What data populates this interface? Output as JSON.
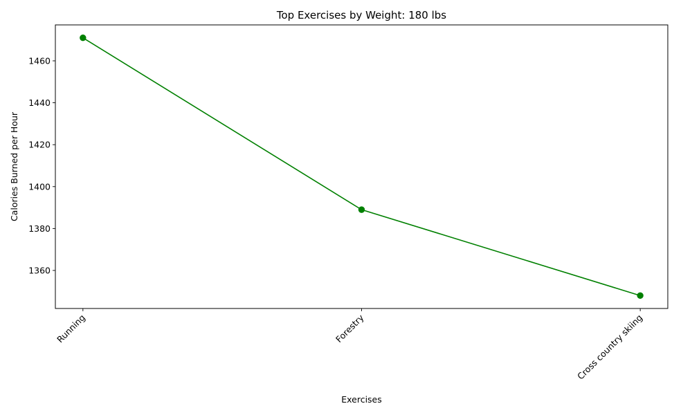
{
  "chart_data": {
    "type": "line",
    "title": "Top Exercises by Weight: 180 lbs",
    "xlabel": "Exercises",
    "ylabel": "Calories Burned per Hour",
    "categories": [
      "Running",
      "Forestry",
      "Cross country skiing"
    ],
    "series": [
      {
        "values": [
          1471,
          1389,
          1348
        ],
        "color": "#008000",
        "marker": "circle"
      }
    ],
    "ylim": [
      1341.85,
      1477.15
    ],
    "yticks": [
      1360,
      1380,
      1400,
      1420,
      1440,
      1460
    ],
    "ytick_labels": [
      "1360",
      "1380",
      "1400",
      "1420",
      "1440",
      "1460"
    ],
    "xtick_rotation": 45,
    "grid": false,
    "legend": "none"
  }
}
